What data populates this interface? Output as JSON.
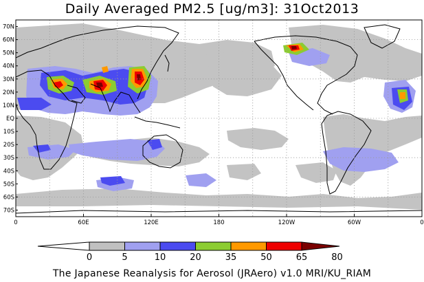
{
  "title": "Daily Averaged PM2.5 [ug/m3]: 31Oct2013",
  "footer": "The Japanese Reanalysis for Aerosol (JRAero) v1.0 MRI/KU_RIAM",
  "map": {
    "projection": "equirectangular",
    "lon_range": [
      0,
      360
    ],
    "lat_range": [
      -75,
      75
    ],
    "grid": "dotted 30 degrees",
    "lat_ticks": [
      {
        "lat": 70,
        "label": "70N"
      },
      {
        "lat": 60,
        "label": "60N"
      },
      {
        "lat": 50,
        "label": "50N"
      },
      {
        "lat": 40,
        "label": "40N"
      },
      {
        "lat": 30,
        "label": "30N"
      },
      {
        "lat": 20,
        "label": "20N"
      },
      {
        "lat": 10,
        "label": "10N"
      },
      {
        "lat": 0,
        "label": "EQ"
      },
      {
        "lat": -10,
        "label": "10S"
      },
      {
        "lat": -20,
        "label": "20S"
      },
      {
        "lat": -30,
        "label": "30S"
      },
      {
        "lat": -40,
        "label": "40S"
      },
      {
        "lat": -50,
        "label": "50S"
      },
      {
        "lat": -60,
        "label": "60S"
      },
      {
        "lat": -70,
        "label": "70S"
      }
    ],
    "lon_ticks": [
      {
        "lon": 0,
        "label": "0"
      },
      {
        "lon": 60,
        "label": "60E"
      },
      {
        "lon": 120,
        "label": "120E"
      },
      {
        "lon": 180,
        "label": "180"
      },
      {
        "lon": 240,
        "label": "120W"
      },
      {
        "lon": 300,
        "label": "60W"
      },
      {
        "lon": 360,
        "label": "0"
      }
    ]
  },
  "colorbar": {
    "levels": [
      0,
      5,
      10,
      20,
      35,
      50,
      65,
      80
    ],
    "labels": [
      "0",
      "5",
      "10",
      "20",
      "35",
      "50",
      "65",
      "80"
    ],
    "colors": [
      "#ffffff",
      "#c0c0c0",
      "#a0a0f0",
      "#4b4bf0",
      "#8ccc32",
      "#ff9900",
      "#ee0000",
      "#7a0000"
    ]
  }
}
